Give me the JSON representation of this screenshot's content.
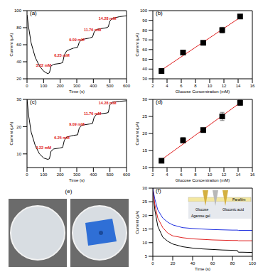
{
  "chart_data": [
    {
      "type": "line",
      "title": "(a)",
      "x_label": "Time (s)",
      "y_label": "Current (μA)",
      "xlim": [
        0,
        600
      ],
      "xticks": [
        0,
        100,
        200,
        300,
        400,
        500,
        600
      ],
      "ylim": [
        20,
        100
      ],
      "yticks": [
        20,
        40,
        60,
        80,
        100
      ],
      "series": [
        {
          "color": "#000000",
          "line_style": "solid",
          "x": [
            0,
            10,
            25,
            50,
            75,
            100,
            125,
            135,
            145,
            160,
            200,
            215,
            225,
            240,
            280,
            305,
            315,
            330,
            380,
            395,
            405,
            420,
            480,
            490,
            500,
            515,
            560,
            600
          ],
          "values": [
            95,
            80,
            62,
            45,
            35,
            29,
            26,
            27,
            35,
            37,
            38,
            39,
            48,
            53,
            56,
            57,
            63,
            66,
            68,
            69,
            75,
            78,
            80,
            81,
            88,
            91,
            93,
            94
          ]
        }
      ],
      "annotations": [
        {
          "text": "3.22 mM",
          "x": 100,
          "y": 30,
          "color": "#e02020"
        },
        {
          "text": "6.25 mM",
          "x": 210,
          "y": 42,
          "color": "#e02020"
        },
        {
          "text": "9.09 mM",
          "x": 300,
          "y": 60,
          "color": "#e02020"
        },
        {
          "text": "11.76 mM",
          "x": 395,
          "y": 72,
          "color": "#e02020"
        },
        {
          "text": "14.28 mM",
          "x": 485,
          "y": 85,
          "color": "#e02020"
        }
      ]
    },
    {
      "type": "scatter",
      "title": "(b)",
      "x_label": "Glucose Concentration (mM)",
      "y_label": "Current (μA)",
      "xlim": [
        2,
        16
      ],
      "xticks": [
        2,
        4,
        6,
        8,
        10,
        12,
        14,
        16
      ],
      "ylim": [
        30,
        100
      ],
      "yticks": [
        30,
        40,
        50,
        60,
        70,
        80,
        90,
        100
      ],
      "series": [
        {
          "type": "scatter",
          "marker": "square",
          "color": "#000000",
          "x": [
            3.22,
            6.25,
            9.09,
            11.76,
            14.28
          ],
          "values": [
            38,
            57,
            67,
            80,
            94
          ],
          "error": [
            1,
            2,
            1.5,
            3,
            1
          ]
        },
        {
          "type": "line",
          "color": "#e02020",
          "line_style": "solid",
          "x": [
            3.22,
            14.28
          ],
          "values": [
            39,
            93
          ]
        }
      ]
    },
    {
      "type": "line",
      "title": "(c)",
      "x_label": "Time (s)",
      "y_label": "Current (μA)",
      "xlim": [
        0,
        600
      ],
      "xticks": [
        0,
        100,
        200,
        300,
        400,
        500,
        600
      ],
      "ylim": [
        5,
        30
      ],
      "yticks": [
        10,
        20,
        30
      ],
      "series": [
        {
          "color": "#000000",
          "line_style": "solid",
          "x": [
            0,
            10,
            25,
            50,
            75,
            100,
            125,
            135,
            145,
            160,
            200,
            215,
            225,
            240,
            280,
            305,
            315,
            330,
            380,
            395,
            405,
            420,
            480,
            490,
            500,
            515,
            560,
            600
          ],
          "values": [
            30,
            24,
            18,
            13,
            10,
            8.5,
            8,
            8.2,
            11,
            11.8,
            12.2,
            12.4,
            15,
            16.2,
            16.8,
            17,
            19.5,
            20.5,
            21,
            21.2,
            23.5,
            24.5,
            25,
            25.2,
            28,
            29,
            29.3,
            29.5
          ]
        }
      ],
      "annotations": [
        {
          "text": "3.22 mM",
          "x": 100,
          "y": 10.5,
          "color": "#e02020"
        },
        {
          "text": "6.25 mM",
          "x": 210,
          "y": 14,
          "color": "#e02020"
        },
        {
          "text": "9.09 mM",
          "x": 300,
          "y": 19,
          "color": "#e02020"
        },
        {
          "text": "11.76 mM",
          "x": 395,
          "y": 23,
          "color": "#e02020"
        },
        {
          "text": "14.28 mM",
          "x": 485,
          "y": 27,
          "color": "#e02020"
        }
      ]
    },
    {
      "type": "scatter",
      "title": "(d)",
      "x_label": "Glucose Concentration (mM)",
      "y_label": "Current (μA)",
      "xlim": [
        2,
        16
      ],
      "xticks": [
        2,
        4,
        6,
        8,
        10,
        12,
        14,
        16
      ],
      "ylim": [
        10,
        30
      ],
      "yticks": [
        10,
        15,
        20,
        25,
        30
      ],
      "series": [
        {
          "type": "scatter",
          "marker": "square",
          "color": "#000000",
          "x": [
            3.22,
            6.25,
            9.09,
            11.76,
            14.28
          ],
          "values": [
            12,
            18,
            21,
            25,
            29
          ],
          "error": [
            0.5,
            0.8,
            0.5,
            1.2,
            0.8
          ]
        },
        {
          "type": "line",
          "color": "#e02020",
          "line_style": "solid",
          "x": [
            3.22,
            14.28
          ],
          "values": [
            12.3,
            29
          ]
        }
      ]
    },
    {
      "type": "photo",
      "title": "(e)"
    },
    {
      "type": "line",
      "title": "(f)",
      "x_label": "Time (s)",
      "y_label": "Current (μA)",
      "xlim": [
        0,
        100
      ],
      "xticks": [
        0,
        20,
        40,
        60,
        80,
        100
      ],
      "ylim": [
        5,
        30
      ],
      "yticks": [
        5,
        10,
        15,
        20,
        25,
        30
      ],
      "series": [
        {
          "color": "#000000",
          "line_style": "solid",
          "x": [
            0,
            2,
            5,
            10,
            15,
            20,
            30,
            40,
            50,
            60,
            70,
            80,
            85,
            86,
            90,
            100
          ],
          "values": [
            30,
            22,
            16,
            12,
            10.5,
            9.5,
            8.5,
            8,
            7.7,
            7.5,
            7.3,
            7.2,
            7.1,
            6.5,
            6.5,
            6.4
          ]
        },
        {
          "color": "#e02020",
          "line_style": "solid",
          "x": [
            0,
            2,
            5,
            10,
            15,
            20,
            30,
            40,
            50,
            60,
            70,
            80,
            85,
            86,
            90,
            100
          ],
          "values": [
            30,
            24,
            19,
            15.5,
            13.5,
            12.5,
            11.8,
            11.4,
            11.2,
            11,
            10.9,
            10.8,
            10.8,
            10.7,
            10.7,
            10.7
          ]
        },
        {
          "color": "#2030e0",
          "line_style": "solid",
          "x": [
            0,
            2,
            5,
            10,
            15,
            20,
            30,
            40,
            50,
            60,
            70,
            80,
            85,
            86,
            90,
            100
          ],
          "values": [
            30,
            26,
            22,
            19,
            17.5,
            16.5,
            15.5,
            15.2,
            15,
            14.8,
            14.7,
            14.6,
            14.6,
            14.5,
            14.5,
            14.5
          ]
        }
      ],
      "inset": {
        "texts": [
          "Parafilm",
          "Glucose",
          "Gluconic acid",
          "Agarose gel"
        ]
      }
    }
  ]
}
